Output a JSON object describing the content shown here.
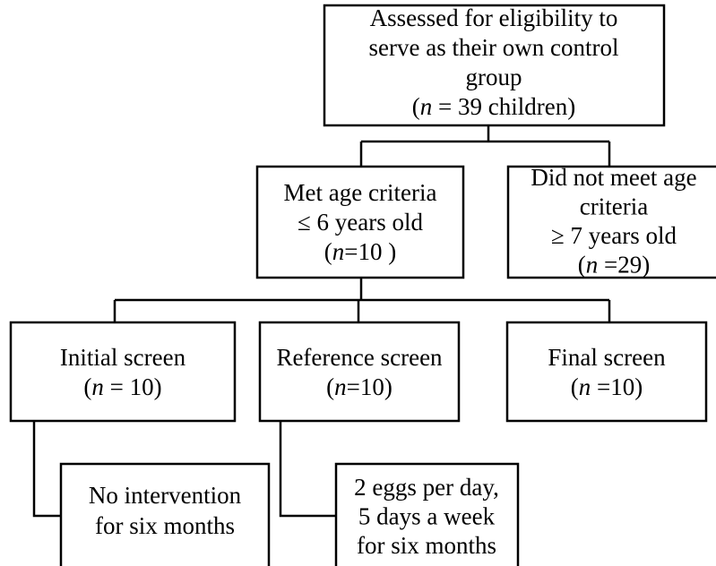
{
  "nodes": [
    {
      "lines": [
        [
          {
            "text": "Assessed for eligibility to"
          }
        ],
        [
          {
            "text": "serve as their own control"
          }
        ],
        [
          {
            "text": "group"
          }
        ],
        [
          {
            "text": "("
          },
          {
            "text": "n",
            "italic": true
          },
          {
            "text": " = 39 children)"
          }
        ]
      ]
    },
    {
      "lines": [
        [
          {
            "text": "Met age criteria"
          }
        ],
        [
          {
            "text": "≤ 6 years old"
          }
        ],
        [
          {
            "text": "("
          },
          {
            "text": "n",
            "italic": true
          },
          {
            "text": "=10 )"
          }
        ]
      ]
    },
    {
      "lines": [
        [
          {
            "text": "Did not meet age"
          }
        ],
        [
          {
            "text": "criteria"
          }
        ],
        [
          {
            "text": "≥ 7 years old"
          }
        ],
        [
          {
            "text": "("
          },
          {
            "text": "n",
            "italic": true
          },
          {
            "text": " =29)"
          }
        ]
      ]
    },
    {
      "lines": [
        [
          {
            "text": "Initial screen"
          }
        ],
        [
          {
            "text": "("
          },
          {
            "text": "n",
            "italic": true
          },
          {
            "text": " = 10)"
          }
        ]
      ]
    },
    {
      "lines": [
        [
          {
            "text": "Reference screen"
          }
        ],
        [
          {
            "text": "("
          },
          {
            "text": "n",
            "italic": true
          },
          {
            "text": "=10)"
          }
        ]
      ]
    },
    {
      "lines": [
        [
          {
            "text": "Final screen"
          }
        ],
        [
          {
            "text": "("
          },
          {
            "text": "n",
            "italic": true
          },
          {
            "text": " =10)"
          }
        ]
      ]
    },
    {
      "lines": [
        [
          {
            "text": "No intervention"
          }
        ],
        [
          {
            "text": "for six months"
          }
        ]
      ]
    },
    {
      "lines": [
        [
          {
            "text": "2 eggs per day,"
          }
        ],
        [
          {
            "text": "5 days a week"
          }
        ],
        [
          {
            "text": "for six months"
          }
        ]
      ]
    }
  ]
}
